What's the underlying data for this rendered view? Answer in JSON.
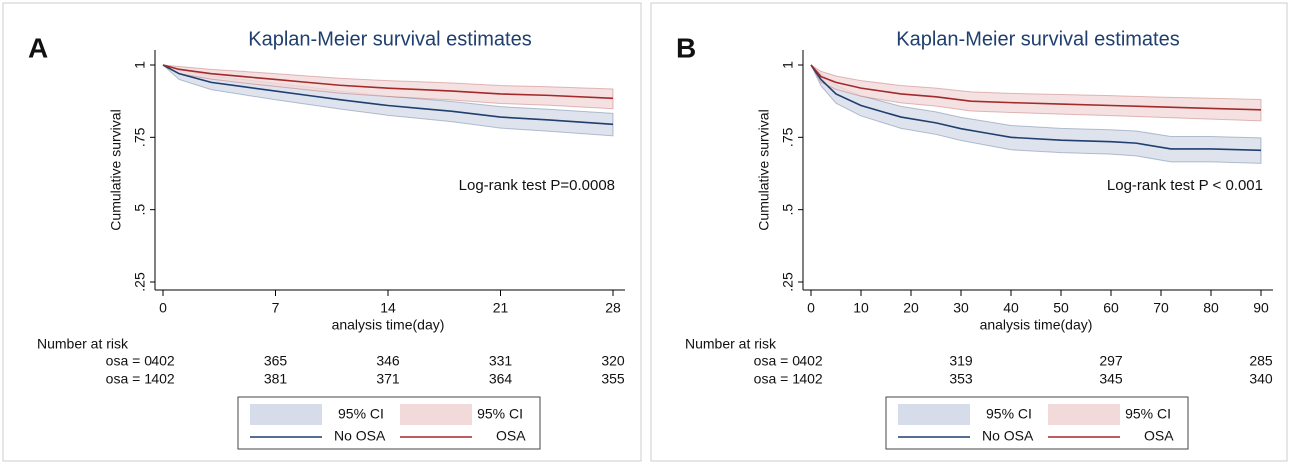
{
  "chart_data": [
    {
      "type": "line",
      "step": true,
      "panel_label": "A",
      "title": "Kaplan-Meier survival estimates",
      "ylabel": "Cumulative survival",
      "xlabel": "analysis time(day)",
      "annotation": "Log-rank test P=0.0008",
      "xlim": [
        0,
        28
      ],
      "xticks": [
        0,
        7,
        14,
        21,
        28
      ],
      "ylim": [
        0.25,
        1
      ],
      "yticks": [
        {
          "value": 0.25,
          "label": ".25"
        },
        {
          "value": 0.5,
          "label": ".5"
        },
        {
          "value": 0.75,
          "label": ".75"
        },
        1
      ],
      "series": [
        {
          "name": "No OSA",
          "color": "#1f3f6e",
          "ci_label": "95% CI",
          "ci_color": "#d6dcea",
          "x": [
            0,
            1,
            3,
            5,
            7,
            9,
            11,
            14,
            16,
            18,
            21,
            24,
            28
          ],
          "values": [
            1,
            0.97,
            0.94,
            0.925,
            0.91,
            0.895,
            0.88,
            0.86,
            0.85,
            0.84,
            0.82,
            0.81,
            0.795
          ],
          "ci_upper": [
            1,
            0.985,
            0.962,
            0.95,
            0.937,
            0.924,
            0.91,
            0.892,
            0.883,
            0.874,
            0.856,
            0.847,
            0.833
          ],
          "ci_lower": [
            1,
            0.95,
            0.915,
            0.897,
            0.88,
            0.864,
            0.848,
            0.826,
            0.815,
            0.804,
            0.782,
            0.771,
            0.755
          ]
        },
        {
          "name": "OSA",
          "color": "#a32a2a",
          "ci_label": "95% CI",
          "ci_color": "#f2dada",
          "x": [
            0,
            1,
            3,
            5,
            7,
            9,
            11,
            14,
            16,
            18,
            21,
            24,
            28
          ],
          "values": [
            1,
            0.985,
            0.97,
            0.96,
            0.95,
            0.94,
            0.93,
            0.92,
            0.915,
            0.91,
            0.9,
            0.895,
            0.885
          ],
          "ci_upper": [
            1,
            0.995,
            0.985,
            0.978,
            0.97,
            0.962,
            0.954,
            0.946,
            0.942,
            0.938,
            0.929,
            0.925,
            0.917
          ],
          "ci_lower": [
            1,
            0.97,
            0.951,
            0.938,
            0.926,
            0.914,
            0.903,
            0.891,
            0.885,
            0.879,
            0.867,
            0.861,
            0.849
          ]
        }
      ],
      "risk_table": {
        "title": "Number at risk",
        "times": [
          0,
          7,
          14,
          21,
          28
        ],
        "rows": [
          {
            "label": "osa = 0",
            "counts": [
              402,
              365,
              346,
              331,
              320
            ]
          },
          {
            "label": "osa = 1",
            "counts": [
              402,
              381,
              371,
              364,
              355
            ]
          }
        ]
      }
    },
    {
      "type": "line",
      "step": true,
      "panel_label": "B",
      "title": "Kaplan-Meier survival estimates",
      "ylabel": "Cumulative survival",
      "xlabel": "analysis time(day)",
      "annotation": "Log-rank test P < 0.001",
      "xlim": [
        0,
        90
      ],
      "xticks": [
        0,
        10,
        20,
        30,
        40,
        50,
        60,
        70,
        80,
        90
      ],
      "ylim": [
        0.25,
        1
      ],
      "yticks": [
        {
          "value": 0.25,
          "label": ".25"
        },
        {
          "value": 0.5,
          "label": ".5"
        },
        {
          "value": 0.75,
          "label": ".75"
        },
        1
      ],
      "series": [
        {
          "name": "No OSA",
          "color": "#1f3f6e",
          "ci_label": "95% CI",
          "ci_color": "#d6dcea",
          "x": [
            0,
            2,
            5,
            10,
            18,
            25,
            30,
            35,
            40,
            50,
            60,
            65,
            72,
            80,
            90
          ],
          "values": [
            1,
            0.95,
            0.9,
            0.86,
            0.82,
            0.8,
            0.78,
            0.765,
            0.75,
            0.74,
            0.735,
            0.73,
            0.71,
            0.71,
            0.705
          ],
          "ci_upper": [
            1,
            0.97,
            0.93,
            0.894,
            0.857,
            0.838,
            0.819,
            0.805,
            0.791,
            0.781,
            0.776,
            0.772,
            0.753,
            0.753,
            0.748
          ],
          "ci_lower": [
            1,
            0.928,
            0.868,
            0.824,
            0.781,
            0.76,
            0.739,
            0.723,
            0.707,
            0.697,
            0.692,
            0.686,
            0.665,
            0.665,
            0.66
          ]
        },
        {
          "name": "OSA",
          "color": "#a32a2a",
          "ci_label": "95% CI",
          "ci_color": "#f2dada",
          "x": [
            0,
            2,
            5,
            10,
            18,
            25,
            32,
            40,
            50,
            60,
            70,
            80,
            90
          ],
          "values": [
            1,
            0.96,
            0.94,
            0.92,
            0.9,
            0.89,
            0.875,
            0.87,
            0.865,
            0.86,
            0.855,
            0.85,
            0.845
          ],
          "ci_upper": [
            1,
            0.978,
            0.962,
            0.946,
            0.929,
            0.92,
            0.907,
            0.902,
            0.898,
            0.894,
            0.889,
            0.885,
            0.881
          ],
          "ci_lower": [
            1,
            0.94,
            0.916,
            0.892,
            0.869,
            0.858,
            0.841,
            0.836,
            0.83,
            0.825,
            0.819,
            0.813,
            0.807
          ]
        }
      ],
      "risk_table": {
        "title": "Number at risk",
        "times": [
          0,
          30,
          60,
          90
        ],
        "rows": [
          {
            "label": "osa = 0",
            "counts": [
              402,
              319,
              297,
              285
            ]
          },
          {
            "label": "osa = 1",
            "counts": [
              402,
              353,
              345,
              340
            ]
          }
        ]
      }
    }
  ]
}
